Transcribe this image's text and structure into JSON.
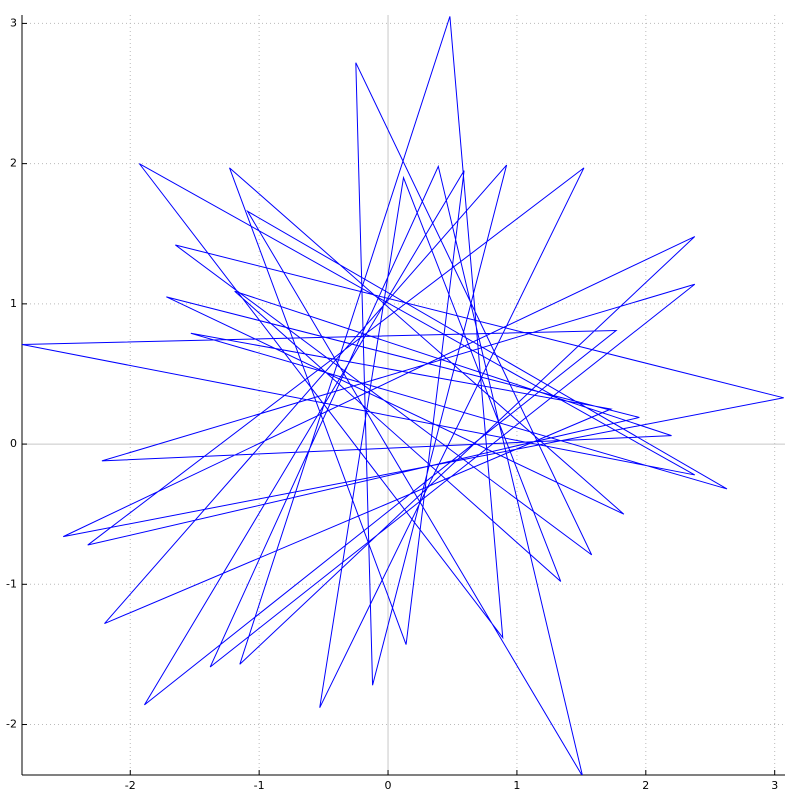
{
  "chart_data": {
    "type": "line",
    "x": [
      2.2,
      -1.19,
      1.34,
      0.12,
      -0.53,
      1.52,
      -2.33,
      1.95,
      -1.72,
      1.83,
      -1.23,
      0.14,
      0.59,
      -1.89,
      1.77,
      -2.84,
      2.38,
      -1.93,
      0.89,
      0.48,
      -1.15,
      2.38,
      -2.52,
      3.07,
      -1.65,
      1.58,
      -0.25,
      -0.12,
      0.92,
      -2.2,
      1.73,
      -1.53,
      2.63,
      -1.09,
      1.51,
      0.39,
      -1.38,
      2.38,
      -2.22,
      2.2
    ],
    "series": [
      {
        "color": "#0000ff",
        "values": [
          0.06,
          1.09,
          -0.98,
          1.9,
          -1.88,
          1.97,
          -0.72,
          0.19,
          1.05,
          -0.5,
          1.97,
          -1.43,
          1.95,
          -1.86,
          0.81,
          0.71,
          -0.22,
          2.0,
          -1.38,
          3.05,
          -1.57,
          1.48,
          -0.66,
          0.33,
          1.42,
          -0.79,
          2.72,
          -1.72,
          1.99,
          -1.28,
          0.25,
          0.79,
          -0.32,
          1.66,
          -2.37,
          1.98,
          -1.59,
          1.14,
          -0.12,
          0.06
        ]
      }
    ],
    "xlim": [
      -2.84,
      3.08
    ],
    "ylim": [
      -2.36,
      3.06
    ],
    "xticks": [
      -2,
      -1,
      0,
      1,
      2,
      3
    ],
    "yticks": [
      -2,
      -1,
      0,
      1,
      2,
      3
    ],
    "grid": true
  }
}
